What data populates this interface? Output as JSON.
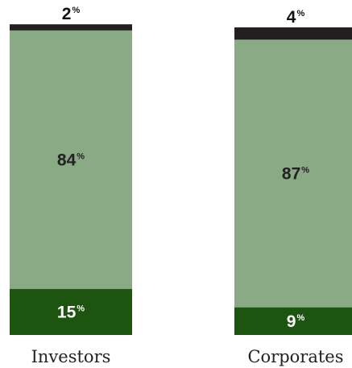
{
  "chart_data": {
    "type": "bar",
    "stacked": true,
    "normalized": true,
    "unit": "%",
    "categories": [
      "Investors",
      "Corporates"
    ],
    "series": [
      {
        "values": [
          15,
          9
        ],
        "color": "#1c5410"
      },
      {
        "values": [
          84,
          87
        ],
        "color": "#8aa985"
      },
      {
        "values": [
          2,
          4
        ],
        "color": "#231f20"
      }
    ],
    "label_colors": [
      "#ffffff",
      "#222222",
      "#111111"
    ],
    "ylim": [
      0,
      100
    ],
    "legend": "none",
    "grid": false
  }
}
